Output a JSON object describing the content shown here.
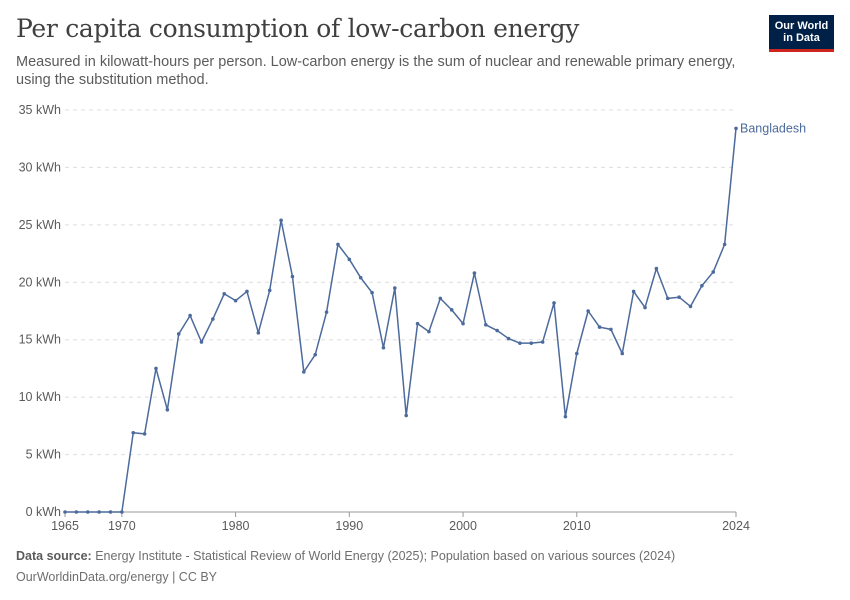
{
  "header": {
    "title": "Per capita consumption of low-carbon energy",
    "subtitle": "Measured in kilowatt-hours per person. Low-carbon energy is the sum of nuclear and renewable primary energy, using the substitution method.",
    "logo_line1": "Our World",
    "logo_line2": "in Data"
  },
  "footer": {
    "source_label": "Data source:",
    "source_text": "Energy Institute - Statistical Review of World Energy (2025); Population based on various sources (2024)",
    "credit": "OurWorldinData.org/energy | CC BY"
  },
  "colors": {
    "series": "#4c6a9c",
    "grid": "#dddddd",
    "axis": "#5b5b5b",
    "logo_bg": "#002147",
    "logo_accent": "#ce261e"
  },
  "chart_data": {
    "type": "line",
    "title": "Per capita consumption of low-carbon energy",
    "xlim": [
      1965,
      2024
    ],
    "ylim": [
      0,
      35
    ],
    "x_ticks": [
      1965,
      1970,
      1980,
      1990,
      2000,
      2010,
      2024
    ],
    "y_ticks": [
      {
        "value": 0,
        "label": "0 kWh"
      },
      {
        "value": 5,
        "label": "5 kWh"
      },
      {
        "value": 10,
        "label": "10 kWh"
      },
      {
        "value": 15,
        "label": "15 kWh"
      },
      {
        "value": 20,
        "label": "20 kWh"
      },
      {
        "value": 25,
        "label": "25 kWh"
      },
      {
        "value": 30,
        "label": "30 kWh"
      },
      {
        "value": 35,
        "label": "35 kWh"
      }
    ],
    "grid": true,
    "legend": "end-of-line label",
    "series": [
      {
        "name": "Bangladesh",
        "x": [
          1965,
          1966,
          1967,
          1968,
          1969,
          1970,
          1971,
          1972,
          1973,
          1974,
          1975,
          1976,
          1977,
          1978,
          1979,
          1980,
          1981,
          1982,
          1983,
          1984,
          1985,
          1986,
          1987,
          1988,
          1989,
          1990,
          1991,
          1992,
          1993,
          1994,
          1995,
          1996,
          1997,
          1998,
          1999,
          2000,
          2001,
          2002,
          2003,
          2004,
          2005,
          2006,
          2007,
          2008,
          2009,
          2010,
          2011,
          2012,
          2013,
          2014,
          2015,
          2016,
          2017,
          2018,
          2019,
          2020,
          2021,
          2022,
          2023,
          2024
        ],
        "y": [
          0,
          0,
          0,
          0,
          0,
          0,
          6.9,
          6.8,
          12.5,
          8.9,
          15.5,
          17.1,
          14.8,
          16.8,
          19.0,
          18.4,
          19.2,
          15.6,
          19.3,
          25.4,
          20.5,
          12.2,
          13.7,
          17.4,
          23.3,
          22.0,
          20.4,
          19.1,
          14.3,
          19.5,
          8.4,
          16.4,
          15.7,
          18.6,
          17.6,
          16.4,
          20.8,
          16.3,
          15.8,
          15.1,
          14.7,
          14.7,
          14.8,
          18.2,
          8.3,
          13.8,
          17.5,
          16.1,
          15.9,
          13.8,
          19.2,
          17.8,
          21.2,
          18.6,
          18.7,
          17.9,
          19.7,
          20.9,
          23.3,
          33.4
        ]
      }
    ]
  }
}
